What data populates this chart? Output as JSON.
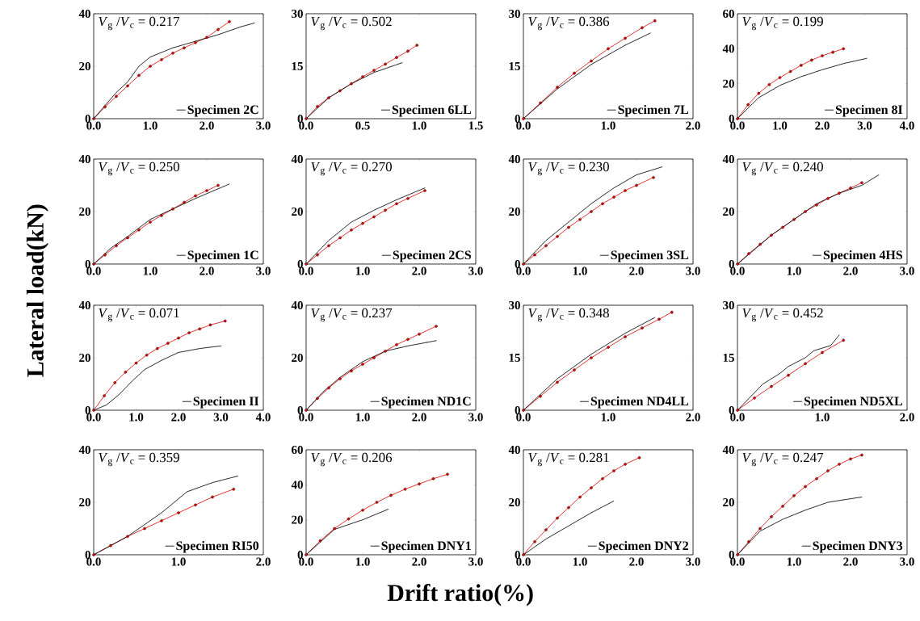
{
  "chart_data": [
    {
      "type": "line",
      "xlim": [
        0,
        3
      ],
      "ylim": [
        0,
        40
      ],
      "xticks": [
        {
          "value": 0,
          "label": "0.0"
        },
        {
          "value": 1,
          "label": "1.0"
        },
        {
          "value": 2,
          "label": "2.0"
        },
        {
          "value": 3,
          "label": "3.0"
        }
      ],
      "yticks": [
        0,
        20,
        40
      ],
      "legend": "bottom right",
      "annotations": [
        "*V*$_{g}$ /*V*$_{c}$ = 0.217"
      ],
      "series": [
        {
          "name": "Specimen 2C",
          "color": "#000000",
          "marker": "none",
          "line_style": "dotted",
          "x": [
            0,
            0.4,
            0.6,
            0.8,
            1.0,
            1.4,
            1.8,
            2.2,
            2.6,
            2.85
          ],
          "values": [
            0,
            10,
            14,
            20,
            23.5,
            27,
            29.5,
            32,
            35,
            36.5
          ]
        },
        {
          "color": "#e00000",
          "marker": "circle",
          "line_style": "solid",
          "x": [
            0,
            0.2,
            0.4,
            0.6,
            0.8,
            1.0,
            1.2,
            1.4,
            1.6,
            1.8,
            2.0,
            2.2,
            2.4
          ],
          "values": [
            0,
            4.5,
            8.5,
            12.5,
            16.5,
            20,
            22.5,
            25,
            27,
            29,
            31,
            34,
            37
          ]
        }
      ]
    },
    {
      "type": "line",
      "xlim": [
        0,
        1.5
      ],
      "ylim": [
        0,
        30
      ],
      "xticks": [
        {
          "value": 0,
          "label": "0.0"
        },
        {
          "value": 0.5,
          "label": "0.5"
        },
        {
          "value": 1,
          "label": "1.0"
        },
        {
          "value": 1.5,
          "label": "1.5"
        }
      ],
      "yticks": [
        0,
        15,
        30
      ],
      "legend": "bottom right",
      "annotations": [
        "*V*$_{g}$ /*V*$_{c}$ = 0.502"
      ],
      "series": [
        {
          "name": "Specimen 6LL",
          "color": "#000000",
          "marker": "none",
          "line_style": "dotted",
          "x": [
            0,
            0.2,
            0.4,
            0.6,
            0.85
          ],
          "values": [
            0,
            6,
            10,
            13.2,
            16
          ]
        },
        {
          "color": "#e00000",
          "marker": "circle",
          "line_style": "solid",
          "x": [
            0,
            0.1,
            0.2,
            0.3,
            0.4,
            0.5,
            0.6,
            0.7,
            0.8,
            0.9,
            0.98
          ],
          "values": [
            0,
            3.5,
            6,
            8,
            10,
            12,
            13.8,
            15.6,
            17.5,
            19.3,
            21
          ]
        }
      ]
    },
    {
      "type": "line",
      "xlim": [
        0,
        2
      ],
      "ylim": [
        0,
        30
      ],
      "xticks": [
        {
          "value": 0,
          "label": "0.0"
        },
        {
          "value": 1,
          "label": "1.0"
        },
        {
          "value": 2,
          "label": "2.0"
        }
      ],
      "yticks": [
        0,
        15,
        30
      ],
      "legend": "bottom right",
      "annotations": [
        "*V*$_{g}$ /*V*$_{c}$ = 0.386"
      ],
      "series": [
        {
          "name": "Specimen 7L",
          "color": "#000000",
          "marker": "none",
          "line_style": "dotted",
          "x": [
            0,
            0.4,
            0.8,
            1.2,
            1.5
          ],
          "values": [
            0,
            8.5,
            15.5,
            21,
            24.5
          ]
        },
        {
          "color": "#e00000",
          "marker": "circle",
          "line_style": "solid",
          "x": [
            0,
            0.2,
            0.4,
            0.6,
            0.8,
            1.0,
            1.2,
            1.4,
            1.55
          ],
          "values": [
            0,
            4.5,
            9,
            13,
            16.5,
            20,
            23,
            26,
            28
          ]
        }
      ]
    },
    {
      "type": "line",
      "xlim": [
        0,
        4
      ],
      "ylim": [
        0,
        60
      ],
      "xticks": [
        {
          "value": 0,
          "label": "0.0"
        },
        {
          "value": 1,
          "label": "1.0"
        },
        {
          "value": 2,
          "label": "2.0"
        },
        {
          "value": 3,
          "label": "3.0"
        },
        {
          "value": 4,
          "label": "4.0"
        }
      ],
      "yticks": [
        0,
        20,
        40,
        60
      ],
      "legend": "bottom right",
      "annotations": [
        "*V*$_{g}$ /*V*$_{c}$ = 0.199"
      ],
      "series": [
        {
          "name": "Specimen 8I",
          "color": "#000000",
          "marker": "none",
          "line_style": "dotted",
          "x": [
            0,
            0.5,
            1.0,
            1.5,
            2.0,
            2.5,
            3.05
          ],
          "values": [
            0,
            12,
            19,
            24,
            28,
            31.5,
            34.5
          ]
        },
        {
          "color": "#e00000",
          "marker": "circle",
          "line_style": "solid",
          "x": [
            0,
            0.25,
            0.5,
            0.75,
            1.0,
            1.25,
            1.5,
            1.75,
            2.0,
            2.25,
            2.5
          ],
          "values": [
            0,
            8,
            14.5,
            19.5,
            23.5,
            27,
            30.5,
            33.5,
            36,
            38,
            40
          ]
        }
      ]
    },
    {
      "type": "line",
      "xlim": [
        0,
        3
      ],
      "ylim": [
        0,
        40
      ],
      "xticks": [
        {
          "value": 0,
          "label": "0.0"
        },
        {
          "value": 1,
          "label": "1.0"
        },
        {
          "value": 2,
          "label": "2.0"
        },
        {
          "value": 3,
          "label": "3.0"
        }
      ],
      "yticks": [
        0,
        20,
        40
      ],
      "legend": "bottom right",
      "annotations": [
        "*V*$_{g}$ /*V*$_{c}$ = 0.250"
      ],
      "series": [
        {
          "name": "Specimen 1C",
          "color": "#000000",
          "marker": "none",
          "line_style": "dotted",
          "x": [
            0,
            0.3,
            0.6,
            1.0,
            1.4,
            1.8,
            2.4
          ],
          "values": [
            0,
            6,
            10.5,
            17,
            21,
            25,
            30.5
          ]
        },
        {
          "color": "#e00000",
          "marker": "circle",
          "line_style": "solid",
          "x": [
            0,
            0.2,
            0.4,
            0.6,
            0.8,
            1.0,
            1.2,
            1.4,
            1.6,
            1.8,
            2.0,
            2.2
          ],
          "values": [
            0,
            3.5,
            7,
            10,
            13,
            16,
            18.5,
            21,
            23.5,
            26,
            28,
            30
          ]
        }
      ]
    },
    {
      "type": "line",
      "xlim": [
        0,
        3
      ],
      "ylim": [
        0,
        40
      ],
      "xticks": [
        {
          "value": 0,
          "label": "0.0"
        },
        {
          "value": 1,
          "label": "1.0"
        },
        {
          "value": 2,
          "label": "2.0"
        },
        {
          "value": 3,
          "label": "3.0"
        }
      ],
      "yticks": [
        0,
        20,
        40
      ],
      "legend": "bottom right",
      "annotations": [
        "*V*$_{g}$ /*V*$_{c}$ = 0.270"
      ],
      "series": [
        {
          "name": "Specimen 2CS",
          "color": "#000000",
          "marker": "none",
          "line_style": "dotted",
          "x": [
            0,
            0.4,
            0.8,
            1.2,
            1.6,
            2.1
          ],
          "values": [
            0,
            9,
            16,
            20.5,
            24.5,
            29
          ]
        },
        {
          "color": "#e00000",
          "marker": "circle",
          "line_style": "solid",
          "x": [
            0,
            0.2,
            0.4,
            0.6,
            0.8,
            1.0,
            1.2,
            1.4,
            1.6,
            1.8,
            2.1
          ],
          "values": [
            0,
            3.5,
            7,
            10,
            13,
            15.5,
            18,
            20.5,
            23,
            25,
            28
          ]
        }
      ]
    },
    {
      "type": "line",
      "xlim": [
        0,
        3
      ],
      "ylim": [
        0,
        40
      ],
      "xticks": [
        {
          "value": 0,
          "label": "0.0"
        },
        {
          "value": 1,
          "label": "1.0"
        },
        {
          "value": 2,
          "label": "2.0"
        },
        {
          "value": 3,
          "label": "3.0"
        }
      ],
      "yticks": [
        0,
        20,
        40
      ],
      "legend": "bottom right",
      "annotations": [
        "*V*$_{g}$ /*V*$_{c}$ = 0.230"
      ],
      "series": [
        {
          "name": "Specimen 3SL",
          "color": "#000000",
          "marker": "none",
          "line_style": "dotted",
          "x": [
            0,
            0.4,
            0.8,
            1.2,
            1.6,
            2.0,
            2.45
          ],
          "values": [
            0,
            9,
            16,
            23,
            29,
            34,
            37
          ]
        },
        {
          "color": "#e00000",
          "marker": "circle",
          "line_style": "solid",
          "x": [
            0,
            0.2,
            0.4,
            0.6,
            0.8,
            1.0,
            1.2,
            1.4,
            1.6,
            1.8,
            2.0,
            2.3
          ],
          "values": [
            0,
            3.5,
            7,
            10.5,
            14,
            17,
            20,
            23,
            25.5,
            28,
            30,
            33
          ]
        }
      ]
    },
    {
      "type": "line",
      "xlim": [
        0,
        3
      ],
      "ylim": [
        0,
        40
      ],
      "xticks": [
        {
          "value": 0,
          "label": "0.0"
        },
        {
          "value": 1,
          "label": "1.0"
        },
        {
          "value": 2,
          "label": "2.0"
        },
        {
          "value": 3,
          "label": "3.0"
        }
      ],
      "yticks": [
        0,
        20,
        40
      ],
      "legend": "bottom right",
      "annotations": [
        "*V*$_{g}$ /*V*$_{c}$ = 0.240"
      ],
      "series": [
        {
          "name": "Specimen 4HS",
          "color": "#000000",
          "marker": "none",
          "line_style": "dotted",
          "x": [
            0,
            0.6,
            1.0,
            1.4,
            1.8,
            2.2,
            2.5
          ],
          "values": [
            0,
            11,
            17,
            23,
            27,
            30,
            34
          ]
        },
        {
          "color": "#e00000",
          "marker": "circle",
          "line_style": "solid",
          "x": [
            0,
            0.2,
            0.4,
            0.6,
            0.8,
            1.0,
            1.2,
            1.4,
            1.6,
            1.8,
            2.0,
            2.2
          ],
          "values": [
            0,
            4,
            7.5,
            11,
            14,
            17,
            20,
            22.5,
            25,
            27,
            29,
            31
          ]
        }
      ]
    },
    {
      "type": "line",
      "xlim": [
        0,
        4
      ],
      "ylim": [
        0,
        40
      ],
      "xticks": [
        {
          "value": 0,
          "label": "0.0"
        },
        {
          "value": 1,
          "label": "1.0"
        },
        {
          "value": 2,
          "label": "2.0"
        },
        {
          "value": 3,
          "label": "3.0"
        },
        {
          "value": 4,
          "label": "4.0"
        }
      ],
      "yticks": [
        0,
        20,
        40
      ],
      "legend": "bottom right",
      "ylabel": "Lateral load(kN)",
      "annotations": [
        "*V*$_{g}$ /*V*$_{c}$ = 0.071"
      ],
      "series": [
        {
          "name": "Specimen II",
          "color": "#000000",
          "marker": "none",
          "line_style": "dotted",
          "x": [
            0,
            0.3,
            0.6,
            0.9,
            1.2,
            1.6,
            2.0,
            2.5,
            3.0
          ],
          "values": [
            0,
            2,
            6,
            11,
            15.5,
            19,
            22,
            23.5,
            24.5
          ]
        },
        {
          "color": "#e00000",
          "marker": "circle",
          "line_style": "solid",
          "x": [
            0,
            0.25,
            0.5,
            0.75,
            1.0,
            1.25,
            1.5,
            1.75,
            2.0,
            2.25,
            2.5,
            2.75,
            3.1
          ],
          "values": [
            0,
            5.5,
            10.5,
            14.5,
            18,
            21,
            23.5,
            25.5,
            27.5,
            29.5,
            31,
            32.5,
            34
          ]
        }
      ]
    },
    {
      "type": "line",
      "xlim": [
        0,
        3
      ],
      "ylim": [
        0,
        40
      ],
      "xticks": [
        {
          "value": 0,
          "label": "0.0"
        },
        {
          "value": 1,
          "label": "1.0"
        },
        {
          "value": 2,
          "label": "2.0"
        },
        {
          "value": 3,
          "label": "3.0"
        }
      ],
      "yticks": [
        0,
        20,
        40
      ],
      "legend": "bottom right",
      "annotations": [
        "*V*$_{g}$ /*V*$_{c}$ = 0.237"
      ],
      "series": [
        {
          "name": "Specimen ND1C",
          "color": "#000000",
          "marker": "none",
          "line_style": "dotted",
          "x": [
            0,
            0.3,
            0.6,
            1.0,
            1.4,
            1.8,
            2.3
          ],
          "values": [
            0,
            7,
            12.5,
            18.5,
            22.5,
            24.5,
            26.5
          ]
        },
        {
          "color": "#e00000",
          "marker": "circle",
          "line_style": "solid",
          "x": [
            0,
            0.2,
            0.4,
            0.6,
            0.8,
            1.0,
            1.2,
            1.4,
            1.6,
            1.8,
            2.0,
            2.3
          ],
          "values": [
            0,
            4.5,
            8.5,
            12,
            15,
            17.5,
            20,
            22.5,
            25,
            27,
            29,
            32
          ]
        }
      ]
    },
    {
      "type": "line",
      "xlim": [
        0,
        2
      ],
      "ylim": [
        0,
        30
      ],
      "xticks": [
        {
          "value": 0,
          "label": "0.0"
        },
        {
          "value": 1,
          "label": "1.0"
        },
        {
          "value": 2,
          "label": "2.0"
        }
      ],
      "yticks": [
        0,
        15,
        30
      ],
      "legend": "bottom right",
      "annotations": [
        "*V*$_{g}$ /*V*$_{c}$ = 0.348"
      ],
      "series": [
        {
          "name": "Specimen ND4LL",
          "color": "#000000",
          "marker": "none",
          "line_style": "dotted",
          "x": [
            0,
            0.4,
            0.8,
            1.2,
            1.55
          ],
          "values": [
            0,
            9,
            16,
            22,
            26.5
          ]
        },
        {
          "color": "#e00000",
          "marker": "circle",
          "line_style": "solid",
          "x": [
            0,
            0.2,
            0.4,
            0.6,
            0.8,
            1.0,
            1.2,
            1.4,
            1.6,
            1.75
          ],
          "values": [
            0,
            4,
            8,
            11.5,
            15,
            18,
            21,
            23.5,
            26,
            28
          ]
        }
      ]
    },
    {
      "type": "line",
      "xlim": [
        0,
        2
      ],
      "ylim": [
        0,
        30
      ],
      "xticks": [
        {
          "value": 0,
          "label": "0.0"
        },
        {
          "value": 1,
          "label": "1.0"
        },
        {
          "value": 2,
          "label": "2.0"
        }
      ],
      "yticks": [
        0,
        15,
        30
      ],
      "legend": "bottom right",
      "annotations": [
        "*V*$_{g}$ /*V*$_{c}$ = 0.452"
      ],
      "series": [
        {
          "name": "Specimen ND5XL",
          "color": "#000000",
          "marker": "none",
          "line_style": "dotted",
          "x": [
            0,
            0.2,
            0.3,
            0.5,
            0.6,
            0.8,
            0.9,
            1.1,
            1.2
          ],
          "values": [
            0,
            5,
            7.5,
            10.5,
            12.5,
            15,
            17,
            18.5,
            21.5
          ]
        },
        {
          "color": "#e00000",
          "marker": "circle",
          "line_style": "solid",
          "x": [
            0,
            0.2,
            0.4,
            0.6,
            0.8,
            1.0,
            1.25
          ],
          "values": [
            0,
            3.5,
            6.8,
            10,
            13.3,
            16.5,
            20
          ]
        }
      ]
    },
    {
      "type": "line",
      "xlim": [
        0,
        2
      ],
      "ylim": [
        0,
        40
      ],
      "xticks": [
        {
          "value": 0,
          "label": "0.0"
        },
        {
          "value": 1,
          "label": "1.0"
        },
        {
          "value": 2,
          "label": "2.0"
        }
      ],
      "yticks": [
        0,
        20,
        40
      ],
      "legend": "bottom right",
      "annotations": [
        "*V*$_{g}$ /*V*$_{c}$ = 0.359"
      ],
      "series": [
        {
          "name": "Specimen RI50",
          "color": "#000000",
          "marker": "none",
          "line_style": "dotted",
          "x": [
            0,
            0.4,
            0.8,
            1.1,
            1.4,
            1.7
          ],
          "values": [
            0,
            7,
            16,
            24,
            27.5,
            30
          ]
        },
        {
          "color": "#e00000",
          "marker": "circle",
          "line_style": "solid",
          "x": [
            0,
            0.2,
            0.4,
            0.6,
            0.8,
            1.0,
            1.2,
            1.4,
            1.65
          ],
          "values": [
            0,
            3.5,
            7,
            10,
            13,
            16,
            19,
            22,
            25
          ]
        }
      ]
    },
    {
      "type": "line",
      "xlim": [
        0,
        3
      ],
      "ylim": [
        0,
        60
      ],
      "xticks": [
        {
          "value": 0,
          "label": "0.0"
        },
        {
          "value": 1,
          "label": "1.0"
        },
        {
          "value": 2,
          "label": "2.0"
        },
        {
          "value": 3,
          "label": "3.0"
        }
      ],
      "yticks": [
        0,
        20,
        40,
        60
      ],
      "legend": "bottom right",
      "xlabel": "Drift ratio(%)",
      "annotations": [
        "*V*$_{g}$ /*V*$_{c}$ = 0.206"
      ],
      "series": [
        {
          "name": "Specimen DNY1",
          "color": "#000000",
          "marker": "none",
          "line_style": "dotted",
          "x": [
            0,
            0.5,
            1.0,
            1.45
          ],
          "values": [
            0,
            14.5,
            20,
            26
          ]
        },
        {
          "color": "#e00000",
          "marker": "circle",
          "line_style": "solid",
          "x": [
            0,
            0.25,
            0.5,
            0.75,
            1.0,
            1.25,
            1.5,
            1.75,
            2.0,
            2.25,
            2.5
          ],
          "values": [
            0,
            8,
            15,
            20.5,
            25.5,
            30,
            34,
            37.5,
            40.5,
            43.5,
            46
          ]
        }
      ]
    },
    {
      "type": "line",
      "xlim": [
        0,
        3
      ],
      "ylim": [
        0,
        40
      ],
      "xticks": [
        {
          "value": 0,
          "label": "0.0"
        },
        {
          "value": 1,
          "label": "1.0"
        },
        {
          "value": 2,
          "label": "2.0"
        },
        {
          "value": 3,
          "label": "3.0"
        }
      ],
      "yticks": [
        0,
        20,
        40
      ],
      "legend": "bottom right",
      "annotations": [
        "*V*$_{g}$ /*V*$_{c}$ = 0.281"
      ],
      "series": [
        {
          "name": "Specimen DNY2",
          "color": "#000000",
          "marker": "none",
          "line_style": "dotted",
          "x": [
            0,
            0.4,
            0.8,
            1.2,
            1.6
          ],
          "values": [
            0,
            6,
            11,
            16,
            20.5
          ]
        },
        {
          "color": "#e00000",
          "marker": "circle",
          "line_style": "solid",
          "x": [
            0,
            0.2,
            0.4,
            0.6,
            0.8,
            1.0,
            1.2,
            1.4,
            1.6,
            1.8,
            2.05
          ],
          "values": [
            0,
            5,
            9.5,
            14,
            18,
            22,
            25.5,
            29,
            32,
            34.5,
            37
          ]
        }
      ]
    },
    {
      "type": "line",
      "xlim": [
        0,
        3
      ],
      "ylim": [
        0,
        40
      ],
      "xticks": [
        {
          "value": 0,
          "label": "0.0"
        },
        {
          "value": 1,
          "label": "1.0"
        },
        {
          "value": 2,
          "label": "2.0"
        },
        {
          "value": 3,
          "label": "3.0"
        }
      ],
      "yticks": [
        0,
        20,
        40
      ],
      "legend": "bottom right",
      "annotations": [
        "*V*$_{g}$ /*V*$_{c}$ = 0.247"
      ],
      "series": [
        {
          "name": "Specimen DNY3",
          "color": "#000000",
          "marker": "none",
          "line_style": "dotted",
          "x": [
            0,
            0.4,
            0.8,
            1.2,
            1.6,
            2.2
          ],
          "values": [
            0,
            9,
            13.5,
            17,
            20,
            22
          ]
        },
        {
          "color": "#e00000",
          "marker": "circle",
          "line_style": "solid",
          "x": [
            0,
            0.2,
            0.4,
            0.6,
            0.8,
            1.0,
            1.2,
            1.4,
            1.6,
            1.8,
            2.0,
            2.2
          ],
          "values": [
            0,
            5,
            10,
            14.5,
            18.5,
            22.5,
            26,
            29,
            32,
            34.5,
            36.5,
            38
          ]
        }
      ]
    }
  ]
}
